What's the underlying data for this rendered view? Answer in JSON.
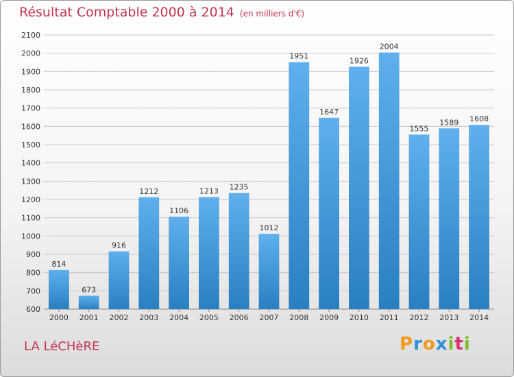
{
  "title": "Résultat Comptable 2000 à 2014",
  "subtitle": "(en milliers d'€)",
  "commune": "LA LéCHèRE",
  "logo": {
    "letters": [
      "P",
      "r",
      "o",
      "x",
      "i",
      "t",
      "i"
    ],
    "colors": [
      "#f29a1c",
      "#2f8fd6",
      "#f29a1c",
      "#2f8fd6",
      "#7cbd2a",
      "#d82f77",
      "#7cbd2a"
    ]
  },
  "colors": {
    "title": "#c4334f",
    "bar_light": "#5fb0ec",
    "bar_dark": "#2a7fc0",
    "grid": "#c8c8c8"
  },
  "chart_data": {
    "type": "bar",
    "title": "Résultat Comptable 2000 à 2014",
    "subtitle": "(en milliers d'€)",
    "xlabel": "",
    "ylabel": "",
    "ylim": [
      600,
      2100
    ],
    "yticks": [
      600,
      700,
      800,
      900,
      1000,
      1100,
      1200,
      1300,
      1400,
      1500,
      1600,
      1700,
      1800,
      1900,
      2000,
      2100
    ],
    "grid": true,
    "categories": [
      "2000",
      "2001",
      "2002",
      "2003",
      "2004",
      "2005",
      "2006",
      "2007",
      "2008",
      "2009",
      "2010",
      "2011",
      "2012",
      "2013",
      "2014"
    ],
    "values": [
      814,
      673,
      916,
      1212,
      1106,
      1213,
      1235,
      1012,
      1951,
      1647,
      1926,
      2004,
      1555,
      1589,
      1608
    ]
  }
}
